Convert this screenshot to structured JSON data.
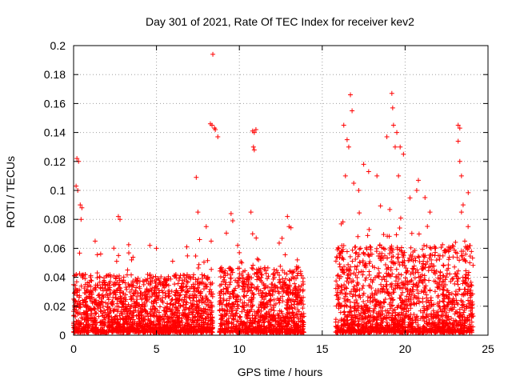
{
  "chart_data": {
    "type": "scatter",
    "title": "Day 301 of 2021, Rate Of TEC Index for receiver kev2",
    "xlabel": "GPS time / hours",
    "ylabel": "ROTI / TECUs",
    "xlim": [
      0,
      25
    ],
    "ylim": [
      0,
      0.2
    ],
    "grid": true,
    "marker": "plus",
    "color": "#ff0000",
    "x_ticks": [
      {
        "value": 0,
        "label": "0"
      },
      {
        "value": 5,
        "label": "5"
      },
      {
        "value": 10,
        "label": "10"
      },
      {
        "value": 15,
        "label": "15"
      },
      {
        "value": 20,
        "label": "20"
      },
      {
        "value": 25,
        "label": "25"
      }
    ],
    "y_ticks": [
      {
        "value": 0,
        "label": "0"
      },
      {
        "value": 0.02,
        "label": "0.02"
      },
      {
        "value": 0.04,
        "label": "0.04"
      },
      {
        "value": 0.06,
        "label": "0.06"
      },
      {
        "value": 0.08,
        "label": "0.08"
      },
      {
        "value": 0.1,
        "label": "0.1"
      },
      {
        "value": 0.12,
        "label": "0.12"
      },
      {
        "value": 0.14,
        "label": "0.14"
      },
      {
        "value": 0.16,
        "label": "0.16"
      },
      {
        "value": 0.18,
        "label": "0.18"
      },
      {
        "value": 0.2,
        "label": "0.2"
      }
    ],
    "data_segments": [
      {
        "x_range": [
          0.0,
          8.4
        ],
        "typical_max": 0.04
      },
      {
        "x_range": [
          8.8,
          13.9
        ],
        "typical_max": 0.045
      },
      {
        "x_range": [
          15.8,
          24.1
        ],
        "typical_max": 0.06
      }
    ],
    "notable_points": [
      {
        "x": 0.2,
        "y": 0.122
      },
      {
        "x": 0.3,
        "y": 0.12
      },
      {
        "x": 0.15,
        "y": 0.103
      },
      {
        "x": 0.25,
        "y": 0.1
      },
      {
        "x": 0.4,
        "y": 0.09
      },
      {
        "x": 0.5,
        "y": 0.088
      },
      {
        "x": 0.45,
        "y": 0.08
      },
      {
        "x": 1.3,
        "y": 0.065
      },
      {
        "x": 2.7,
        "y": 0.082
      },
      {
        "x": 2.8,
        "y": 0.08
      },
      {
        "x": 3.5,
        "y": 0.052
      },
      {
        "x": 4.6,
        "y": 0.062
      },
      {
        "x": 5.0,
        "y": 0.06
      },
      {
        "x": 7.4,
        "y": 0.109
      },
      {
        "x": 7.5,
        "y": 0.085
      },
      {
        "x": 7.6,
        "y": 0.066
      },
      {
        "x": 8.0,
        "y": 0.075
      },
      {
        "x": 8.3,
        "y": 0.065
      },
      {
        "x": 8.25,
        "y": 0.146
      },
      {
        "x": 8.35,
        "y": 0.145
      },
      {
        "x": 8.5,
        "y": 0.143
      },
      {
        "x": 8.55,
        "y": 0.142
      },
      {
        "x": 8.7,
        "y": 0.137
      },
      {
        "x": 8.4,
        "y": 0.194
      },
      {
        "x": 9.5,
        "y": 0.084
      },
      {
        "x": 9.6,
        "y": 0.079
      },
      {
        "x": 9.9,
        "y": 0.062
      },
      {
        "x": 10.0,
        "y": 0.057
      },
      {
        "x": 10.8,
        "y": 0.141
      },
      {
        "x": 10.9,
        "y": 0.14
      },
      {
        "x": 11.0,
        "y": 0.142
      },
      {
        "x": 10.85,
        "y": 0.13
      },
      {
        "x": 10.9,
        "y": 0.128
      },
      {
        "x": 10.7,
        "y": 0.085
      },
      {
        "x": 10.8,
        "y": 0.07
      },
      {
        "x": 12.9,
        "y": 0.082
      },
      {
        "x": 13.0,
        "y": 0.075
      },
      {
        "x": 13.5,
        "y": 0.052
      },
      {
        "x": 16.3,
        "y": 0.145
      },
      {
        "x": 16.5,
        "y": 0.135
      },
      {
        "x": 16.6,
        "y": 0.13
      },
      {
        "x": 16.7,
        "y": 0.166
      },
      {
        "x": 16.8,
        "y": 0.155
      },
      {
        "x": 16.4,
        "y": 0.11
      },
      {
        "x": 16.9,
        "y": 0.105
      },
      {
        "x": 17.5,
        "y": 0.118
      },
      {
        "x": 17.8,
        "y": 0.113
      },
      {
        "x": 17.2,
        "y": 0.1
      },
      {
        "x": 18.3,
        "y": 0.11
      },
      {
        "x": 18.9,
        "y": 0.137
      },
      {
        "x": 19.2,
        "y": 0.167
      },
      {
        "x": 19.25,
        "y": 0.157
      },
      {
        "x": 19.3,
        "y": 0.145
      },
      {
        "x": 19.5,
        "y": 0.14
      },
      {
        "x": 19.4,
        "y": 0.13
      },
      {
        "x": 19.7,
        "y": 0.13
      },
      {
        "x": 19.9,
        "y": 0.125
      },
      {
        "x": 19.6,
        "y": 0.11
      },
      {
        "x": 20.8,
        "y": 0.107
      },
      {
        "x": 20.7,
        "y": 0.1
      },
      {
        "x": 21.2,
        "y": 0.095
      },
      {
        "x": 21.5,
        "y": 0.085
      },
      {
        "x": 21.8,
        "y": 0.06
      },
      {
        "x": 22.0,
        "y": 0.055
      },
      {
        "x": 23.2,
        "y": 0.145
      },
      {
        "x": 23.3,
        "y": 0.143
      },
      {
        "x": 23.2,
        "y": 0.134
      },
      {
        "x": 23.3,
        "y": 0.12
      },
      {
        "x": 23.4,
        "y": 0.11
      },
      {
        "x": 23.5,
        "y": 0.09
      },
      {
        "x": 23.4,
        "y": 0.085
      },
      {
        "x": 23.8,
        "y": 0.075
      },
      {
        "x": 23.6,
        "y": 0.065
      },
      {
        "x": 23.9,
        "y": 0.05
      }
    ]
  }
}
